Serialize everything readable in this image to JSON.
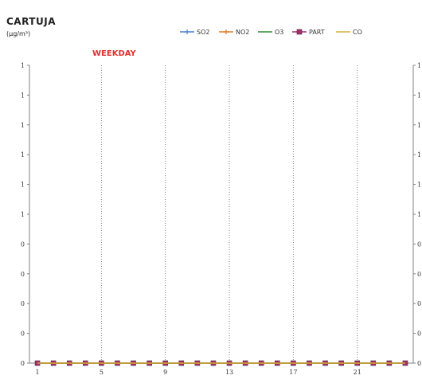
{
  "chart_data": {
    "type": "line",
    "title": "CARTUJA",
    "units": "(µg/m³)",
    "subtitle": "WEEKDAY",
    "x": [
      1,
      2,
      3,
      4,
      5,
      6,
      7,
      8,
      9,
      10,
      11,
      12,
      13,
      14,
      15,
      16,
      17,
      18,
      19,
      20,
      21,
      22,
      23,
      24
    ],
    "x_tick_labels": [
      "1",
      "5",
      "9",
      "13",
      "17",
      "21"
    ],
    "y_tick_labels_left": [
      "1",
      "1",
      "1",
      "1",
      "1",
      "1",
      "0",
      "0",
      "0",
      "0",
      "0"
    ],
    "y_tick_labels_right": [
      "1",
      "1",
      "1",
      "1",
      "1",
      "1",
      "0",
      "0",
      "0",
      "0",
      "0"
    ],
    "ylim": [
      0,
      1
    ],
    "grid": "vertical dotted lines at labeled x ticks",
    "legend_position": "top",
    "series": [
      {
        "name": "SO2",
        "color": "#4a7fd0",
        "marker": "cross",
        "values": [
          0,
          0,
          0,
          0,
          0,
          0,
          0,
          0,
          0,
          0,
          0,
          0,
          0,
          0,
          0,
          0,
          0,
          0,
          0,
          0,
          0,
          0,
          0,
          0
        ]
      },
      {
        "name": "NO2",
        "color": "#e07a20",
        "marker": "cross",
        "values": [
          0,
          0,
          0,
          0,
          0,
          0,
          0,
          0,
          0,
          0,
          0,
          0,
          0,
          0,
          0,
          0,
          0,
          0,
          0,
          0,
          0,
          0,
          0,
          0
        ]
      },
      {
        "name": "O3",
        "color": "#2e8a2e",
        "marker": "none",
        "values": [
          0,
          0,
          0,
          0,
          0,
          0,
          0,
          0,
          0,
          0,
          0,
          0,
          0,
          0,
          0,
          0,
          0,
          0,
          0,
          0,
          0,
          0,
          0,
          0
        ]
      },
      {
        "name": "PART",
        "color": "#a0306e",
        "marker": "square",
        "values": [
          0,
          0,
          0,
          0,
          0,
          0,
          0,
          0,
          0,
          0,
          0,
          0,
          0,
          0,
          0,
          0,
          0,
          0,
          0,
          0,
          0,
          0,
          0,
          0
        ]
      },
      {
        "name": "CO",
        "color": "#d4b030",
        "marker": "none",
        "values": [
          0,
          0,
          0,
          0,
          0,
          0,
          0,
          0,
          0,
          0,
          0,
          0,
          0,
          0,
          0,
          0,
          0,
          0,
          0,
          0,
          0,
          0,
          0,
          0
        ]
      }
    ]
  }
}
